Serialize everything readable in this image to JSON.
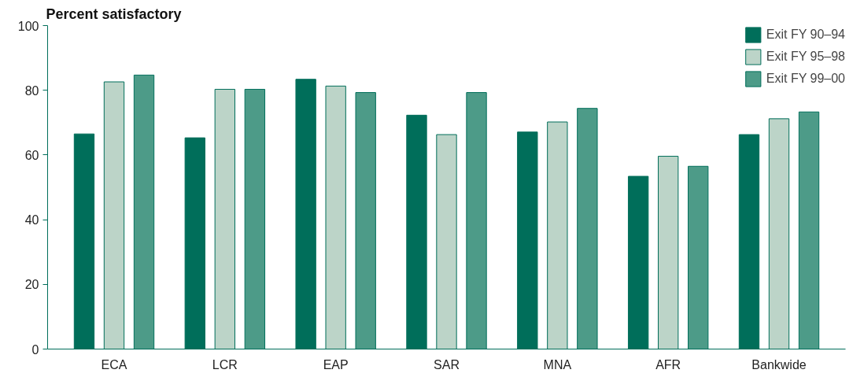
{
  "chart_data": {
    "type": "bar",
    "ylabel": "Percent satisfactory",
    "categories": [
      "ECA",
      "LCR",
      "EAP",
      "SAR",
      "MNA",
      "AFR",
      "Bankwide"
    ],
    "series": [
      {
        "name": "Exit FY 90–94",
        "color": "#006e5a",
        "values": [
          66.5,
          65.3,
          83.4,
          72.3,
          67.1,
          53.4,
          66.3
        ]
      },
      {
        "name": "Exit FY 95–98",
        "color": "#bcd4c8",
        "values": [
          82.6,
          80.3,
          81.3,
          66.3,
          70.2,
          59.6,
          71.2
        ]
      },
      {
        "name": "Exit FY 99–00",
        "color": "#4d9b88",
        "values": [
          84.7,
          80.3,
          79.3,
          79.3,
          74.4,
          56.5,
          73.3
        ]
      }
    ],
    "ylim": [
      0,
      100
    ],
    "yticks": [
      0,
      20,
      40,
      60,
      80,
      100
    ],
    "grid": false,
    "legend": "top right"
  }
}
